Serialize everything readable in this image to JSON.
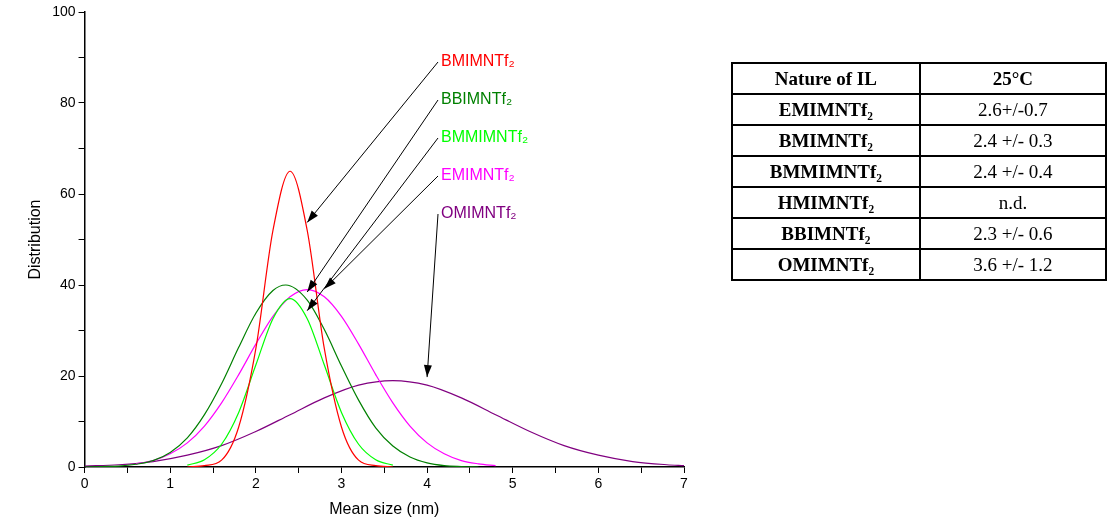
{
  "chart_data": [
    {
      "type": "line",
      "xlabel": "Mean size (nm)",
      "ylabel": "Distribution",
      "xlim": [
        0,
        7
      ],
      "ylim": [
        0,
        100
      ],
      "xticks": [
        0,
        {
          "value": 0.5,
          "label": null
        },
        1,
        {
          "value": 1.5,
          "label": null
        },
        2,
        {
          "value": 2.5,
          "label": null
        },
        3,
        {
          "value": 3.5,
          "label": null
        },
        4,
        {
          "value": 4.5,
          "label": null
        },
        5,
        {
          "value": 5.5,
          "label": null
        },
        6,
        {
          "value": 6.5,
          "label": null
        },
        7
      ],
      "yticks": [
        0,
        {
          "value": 10,
          "label": null
        },
        20,
        {
          "value": 30,
          "label": null
        },
        40,
        {
          "value": 50,
          "label": null
        },
        60,
        {
          "value": 70,
          "label": null
        },
        80,
        {
          "value": 90,
          "label": null
        },
        100
      ],
      "grid": false,
      "legend": false,
      "marker": "none",
      "series": [
        {
          "name": "BMIMNTf₂",
          "color": "#ff0000",
          "x": [
            1.2,
            1.4,
            1.6,
            1.8,
            2.0,
            2.2,
            2.4,
            2.6,
            2.8,
            3.0,
            3.2,
            3.4,
            3.6
          ],
          "values": [
            0,
            0.3,
            1.5,
            8.8,
            26,
            52,
            65,
            52,
            26,
            8.8,
            1.5,
            0.3,
            0
          ]
        },
        {
          "name": "BBIMNTf₂",
          "color": "#008000",
          "x": [
            0,
            0.2,
            0.4,
            0.6,
            0.8,
            1.0,
            1.2,
            1.4,
            1.6,
            1.8,
            2.0,
            2.2,
            2.35,
            2.6,
            2.8,
            3.0,
            3.2,
            3.4,
            3.6,
            3.8,
            4.0,
            4.2,
            4.4,
            4.6
          ],
          "values": [
            0,
            0.1,
            0.2,
            0.6,
            1.4,
            3.2,
            6.4,
            11.5,
            18.3,
            26.3,
            33.8,
            38.8,
            40,
            36.7,
            30.2,
            22.2,
            14.7,
            8.6,
            4.6,
            2.2,
            0.9,
            0.3,
            0.1,
            0
          ]
        },
        {
          "name": "BMMIMNTf₂",
          "color": "#00ff00",
          "x": [
            1.2,
            1.4,
            1.6,
            1.8,
            2.0,
            2.2,
            2.4,
            2.6,
            2.8,
            3.0,
            3.2,
            3.4,
            3.6
          ],
          "values": [
            0.4,
            1.6,
            5.0,
            12.0,
            22.4,
            32.6,
            37,
            32.6,
            22.4,
            12.0,
            5.0,
            1.6,
            0.4
          ]
        },
        {
          "name": "EMIMNTf₂",
          "color": "#ff00ff",
          "x": [
            0.6,
            0.8,
            1.0,
            1.2,
            1.4,
            1.6,
            1.8,
            2.0,
            2.2,
            2.4,
            2.6,
            2.8,
            3.0,
            3.2,
            3.4,
            3.6,
            3.8,
            4.0,
            4.2,
            4.4,
            4.6,
            4.8
          ],
          "values": [
            0.7,
            1.4,
            2.9,
            5.3,
            9.0,
            14.1,
            20.3,
            27.0,
            33.1,
            37.4,
            39,
            37.4,
            33.1,
            27.0,
            20.3,
            14.1,
            9.0,
            5.3,
            2.9,
            1.4,
            0.7,
            0.3
          ]
        },
        {
          "name": "OMIMNTf₂",
          "color": "#800080",
          "x": [
            0,
            0.4,
            0.8,
            1.2,
            1.6,
            2.0,
            2.4,
            2.8,
            3.2,
            3.6,
            4.0,
            4.4,
            4.8,
            5.2,
            5.6,
            6.0,
            6.4,
            6.8,
            7.0
          ],
          "values": [
            0.2,
            0.5,
            1.2,
            2.6,
            4.7,
            7.8,
            11.5,
            15.2,
            18.0,
            19,
            18.0,
            15.2,
            11.5,
            7.8,
            4.7,
            2.6,
            1.2,
            0.5,
            0.3
          ]
        }
      ]
    },
    {
      "type": "other",
      "annotations": [
        "Nature of IL",
        "25°C",
        "EMIMNTf₂",
        "2.6+/-0.7",
        "BMIMNTf₂",
        "2.4 +/- 0.3",
        "BMMIMNTf₂",
        "2.4 +/- 0.4",
        "HMIMNTf₂",
        "n.d.",
        "BBIMNTf₂",
        "2.3 +/- 0.6",
        "OMIMNTf₂",
        "3.6 +/- 1.2"
      ]
    }
  ]
}
